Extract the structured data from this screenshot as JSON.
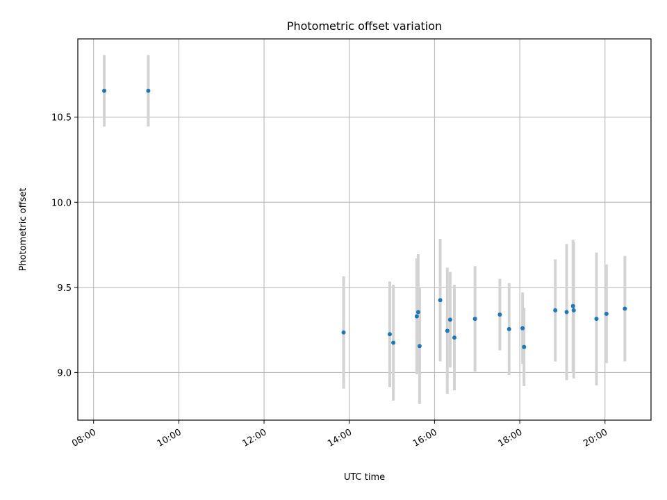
{
  "chart_data": {
    "type": "scatter",
    "title": "Photometric offset variation",
    "xlabel": "UTC time",
    "ylabel": "Photometric offset",
    "xlim_hours": [
      7.63,
      21.08
    ],
    "ylim": [
      8.72,
      10.96
    ],
    "x_ticks": [
      {
        "value": 8,
        "label": "08:00"
      },
      {
        "value": 10,
        "label": "10:00"
      },
      {
        "value": 12,
        "label": "12:00"
      },
      {
        "value": 14,
        "label": "14:00"
      },
      {
        "value": 16,
        "label": "16:00"
      },
      {
        "value": 18,
        "label": "18:00"
      },
      {
        "value": 20,
        "label": "20:00"
      }
    ],
    "y_ticks": [
      {
        "value": 9.0,
        "label": "9.0"
      },
      {
        "value": 9.5,
        "label": "9.5"
      },
      {
        "value": 10.0,
        "label": "10.0"
      },
      {
        "value": 10.5,
        "label": "10.5"
      }
    ],
    "grid": true,
    "point_color": "#1f77b4",
    "errorbar_color": "#d3d3d3",
    "points": [
      {
        "x": "08:15",
        "y": 10.655,
        "err": 0.21
      },
      {
        "x": "09:17",
        "y": 10.655,
        "err": 0.21
      },
      {
        "x": "13:52",
        "y": 9.235,
        "err": 0.33
      },
      {
        "x": "14:57",
        "y": 9.225,
        "err": 0.31
      },
      {
        "x": "15:02",
        "y": 9.175,
        "err": 0.34
      },
      {
        "x": "15:35",
        "y": 9.33,
        "err": 0.34
      },
      {
        "x": "15:37",
        "y": 9.355,
        "err": 0.34
      },
      {
        "x": "15:39",
        "y": 9.155,
        "err": 0.34
      },
      {
        "x": "16:08",
        "y": 9.425,
        "err": 0.36
      },
      {
        "x": "16:18",
        "y": 9.245,
        "err": 0.37
      },
      {
        "x": "16:22",
        "y": 9.31,
        "err": 0.28
      },
      {
        "x": "16:28",
        "y": 9.205,
        "err": 0.31
      },
      {
        "x": "16:57",
        "y": 9.315,
        "err": 0.31
      },
      {
        "x": "17:32",
        "y": 9.34,
        "err": 0.21
      },
      {
        "x": "17:45",
        "y": 9.255,
        "err": 0.27
      },
      {
        "x": "18:04",
        "y": 9.26,
        "err": 0.21
      },
      {
        "x": "18:06",
        "y": 9.15,
        "err": 0.23
      },
      {
        "x": "18:50",
        "y": 9.365,
        "err": 0.3
      },
      {
        "x": "19:06",
        "y": 9.355,
        "err": 0.4
      },
      {
        "x": "19:15",
        "y": 9.39,
        "err": 0.39
      },
      {
        "x": "19:16",
        "y": 9.365,
        "err": 0.4
      },
      {
        "x": "19:48",
        "y": 9.315,
        "err": 0.39
      },
      {
        "x": "20:02",
        "y": 9.345,
        "err": 0.29
      },
      {
        "x": "20:28",
        "y": 9.375,
        "err": 0.31
      }
    ]
  }
}
